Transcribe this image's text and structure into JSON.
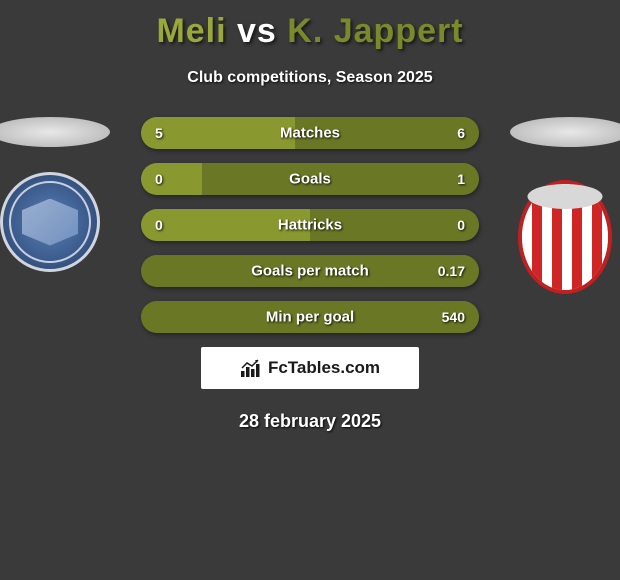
{
  "title": {
    "player1": "Meli",
    "vs": "vs",
    "player2": "K. Jappert",
    "player1_color": "#9aa83a",
    "vs_color": "#ffffff",
    "player2_color": "#7a8a2a"
  },
  "subtitle": "Club competitions, Season 2025",
  "colors": {
    "fill_olive": "#8a9830",
    "fill_dark_olive": "#6a7825",
    "bg_dark": "#323232",
    "row_bg": "#4a4a4a"
  },
  "stats": [
    {
      "label": "Matches",
      "left_val": "5",
      "right_val": "6",
      "left_pct": 45.5,
      "right_pct": 54.5
    },
    {
      "label": "Goals",
      "left_val": "0",
      "right_val": "1",
      "left_pct": 18,
      "right_pct": 82
    },
    {
      "label": "Hattricks",
      "left_val": "0",
      "right_val": "0",
      "left_pct": 50,
      "right_pct": 50
    },
    {
      "label": "Goals per match",
      "left_val": "",
      "right_val": "0.17",
      "left_pct": 0,
      "right_pct": 100
    },
    {
      "label": "Min per goal",
      "left_val": "",
      "right_val": "540",
      "left_pct": 0,
      "right_pct": 100
    }
  ],
  "brand": "FcTables.com",
  "date": "28 february 2025"
}
